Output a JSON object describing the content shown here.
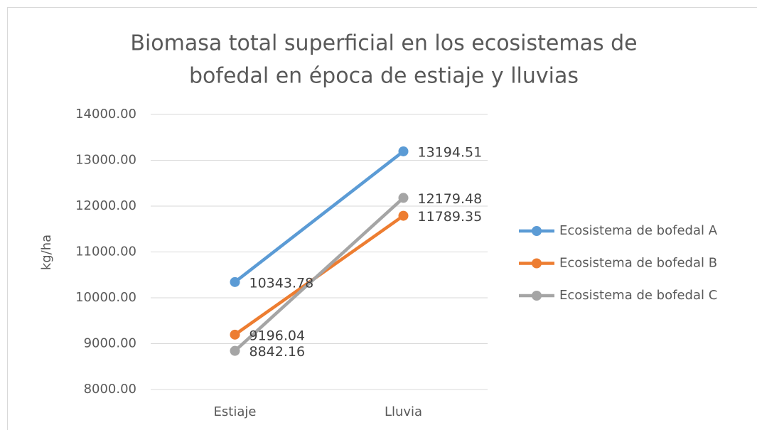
{
  "chart_data": {
    "type": "line",
    "title": [
      "Biomasa total superficial en los ecosistemas de",
      "bofedal en época de estiaje y lluvias"
    ],
    "y_label": "kg/ha",
    "categories": [
      "Estiaje",
      "Lluvia"
    ],
    "series": [
      {
        "name": "Ecosistema de bofedal A",
        "color": "#5b9bd5",
        "values": [
          10343.78,
          13194.51
        ]
      },
      {
        "name": "Ecosistema de bofedal B",
        "color": "#ed7d31",
        "values": [
          9196.04,
          11789.35
        ]
      },
      {
        "name": "Ecosistema de bofedal C",
        "color": "#a5a5a5",
        "values": [
          8842.16,
          12179.48
        ]
      }
    ],
    "ylim": [
      8000,
      14000
    ],
    "yticks": [
      {
        "value": 8000,
        "label": "8000.00"
      },
      {
        "value": 9000,
        "label": "9000.00"
      },
      {
        "value": 10000,
        "label": "10000.00"
      },
      {
        "value": 11000,
        "label": "11000.00"
      },
      {
        "value": 12000,
        "label": "12000.00"
      },
      {
        "value": 13000,
        "label": "13000.00"
      },
      {
        "value": 14000,
        "label": "14000.00"
      }
    ],
    "grid": true,
    "legend": "right"
  }
}
